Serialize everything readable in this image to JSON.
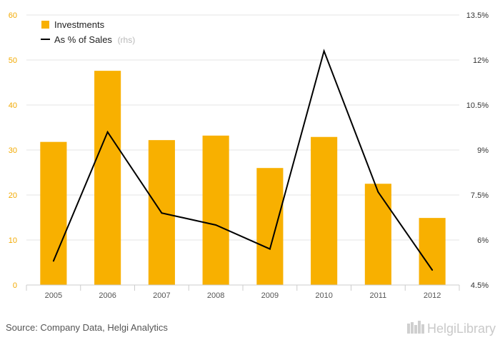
{
  "chart_data": {
    "type": "bar",
    "categories": [
      "2005",
      "2006",
      "2007",
      "2008",
      "2009",
      "2010",
      "2011",
      "2012"
    ],
    "series": [
      {
        "name": "Investments",
        "type": "bar",
        "axis": "left",
        "values": [
          31.8,
          47.6,
          32.2,
          33.2,
          26.0,
          32.9,
          22.5,
          14.9
        ]
      },
      {
        "name": "As % of Sales",
        "type": "line",
        "axis": "right",
        "values": [
          5.3,
          9.6,
          6.9,
          6.5,
          5.7,
          12.3,
          7.6,
          5.0
        ]
      }
    ],
    "legend_suffix": "(rhs)",
    "ylim": [
      0,
      60
    ],
    "y_ticks": [
      "0",
      "10",
      "20",
      "30",
      "40",
      "50",
      "60"
    ],
    "y2lim": [
      4.5,
      13.5
    ],
    "y2_ticks": [
      "4.5%",
      "6%",
      "7.5%",
      "9%",
      "10.5%",
      "12%",
      "13.5%"
    ],
    "grid": true,
    "legend_position": "top-left",
    "colors": {
      "bar": "#f8b000",
      "line": "#000000",
      "left_axis_text": "#f2a900"
    }
  },
  "footer": {
    "source": "Source: Company Data, Helgi Analytics",
    "brand": "HelgiLibrary"
  }
}
